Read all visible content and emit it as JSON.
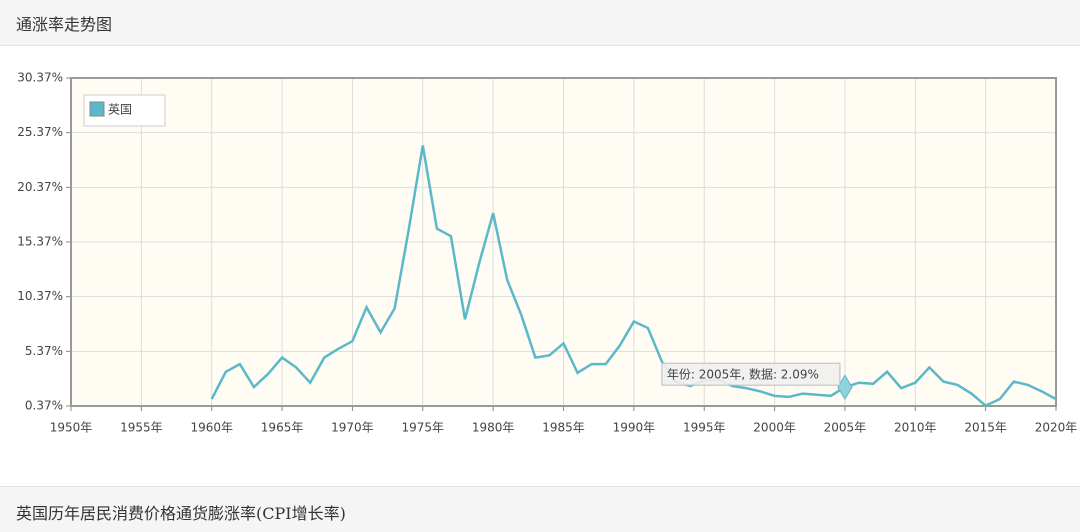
{
  "header": {
    "title": "通涨率走势图"
  },
  "chart_data": {
    "type": "line",
    "x": [
      1960,
      1961,
      1962,
      1963,
      1964,
      1965,
      1966,
      1967,
      1968,
      1969,
      1970,
      1971,
      1972,
      1973,
      1974,
      1975,
      1976,
      1977,
      1978,
      1979,
      1980,
      1981,
      1982,
      1983,
      1984,
      1985,
      1986,
      1987,
      1988,
      1989,
      1990,
      1991,
      1992,
      1993,
      1994,
      1995,
      1996,
      1997,
      1998,
      1999,
      2000,
      2001,
      2002,
      2003,
      2004,
      2005,
      2006,
      2007,
      2008,
      2009,
      2010,
      2011,
      2012,
      2013,
      2014,
      2015,
      2016,
      2017,
      2018,
      2019,
      2020
    ],
    "series": [
      {
        "name": "英国",
        "color": "#5bb8c9",
        "values": [
          1.0,
          3.5,
          4.2,
          2.1,
          3.3,
          4.8,
          3.9,
          2.5,
          4.8,
          5.6,
          6.3,
          9.4,
          7.1,
          9.3,
          16.5,
          24.2,
          16.6,
          15.9,
          8.3,
          13.4,
          18.0,
          11.9,
          8.7,
          4.8,
          5.0,
          6.1,
          3.4,
          4.2,
          4.2,
          5.9,
          8.1,
          7.5,
          4.4,
          2.6,
          2.2,
          2.7,
          2.8,
          2.2,
          2.0,
          1.7,
          1.3,
          1.2,
          1.5,
          1.4,
          1.3,
          2.09,
          2.5,
          2.4,
          3.5,
          2.0,
          2.5,
          3.9,
          2.6,
          2.3,
          1.5,
          0.4,
          1.0,
          2.6,
          2.3,
          1.7,
          1.0
        ]
      }
    ],
    "xlim": [
      1950,
      2020
    ],
    "xticks": [
      {
        "value": 1950,
        "label": "1950年"
      },
      {
        "value": 1955,
        "label": "1955年"
      },
      {
        "value": 1960,
        "label": "1960年"
      },
      {
        "value": 1965,
        "label": "1965年"
      },
      {
        "value": 1970,
        "label": "1970年"
      },
      {
        "value": 1975,
        "label": "1975年"
      },
      {
        "value": 1980,
        "label": "1980年"
      },
      {
        "value": 1985,
        "label": "1985年"
      },
      {
        "value": 1990,
        "label": "1990年"
      },
      {
        "value": 1995,
        "label": "1995年"
      },
      {
        "value": 2000,
        "label": "2000年"
      },
      {
        "value": 2005,
        "label": "2005年"
      },
      {
        "value": 2010,
        "label": "2010年"
      },
      {
        "value": 2015,
        "label": "2015年"
      },
      {
        "value": 2020,
        "label": "2020年"
      }
    ],
    "ylim": [
      0.37,
      30.37
    ],
    "yticks": [
      {
        "value": 0.37,
        "label": "0.37%"
      },
      {
        "value": 5.37,
        "label": "5.37%"
      },
      {
        "value": 10.37,
        "label": "10.37%"
      },
      {
        "value": 15.37,
        "label": "15.37%"
      },
      {
        "value": 20.37,
        "label": "20.37%"
      },
      {
        "value": 25.37,
        "label": "25.37%"
      },
      {
        "value": 30.37,
        "label": "30.37%"
      }
    ],
    "grid": true,
    "legend": "top-left",
    "tooltip": {
      "index": 45,
      "text": "年份: 2005年, 数据: 2.09%"
    }
  },
  "section": {
    "title": "英国历年居民消费价格通货膨涨率(CPI增长率)"
  }
}
